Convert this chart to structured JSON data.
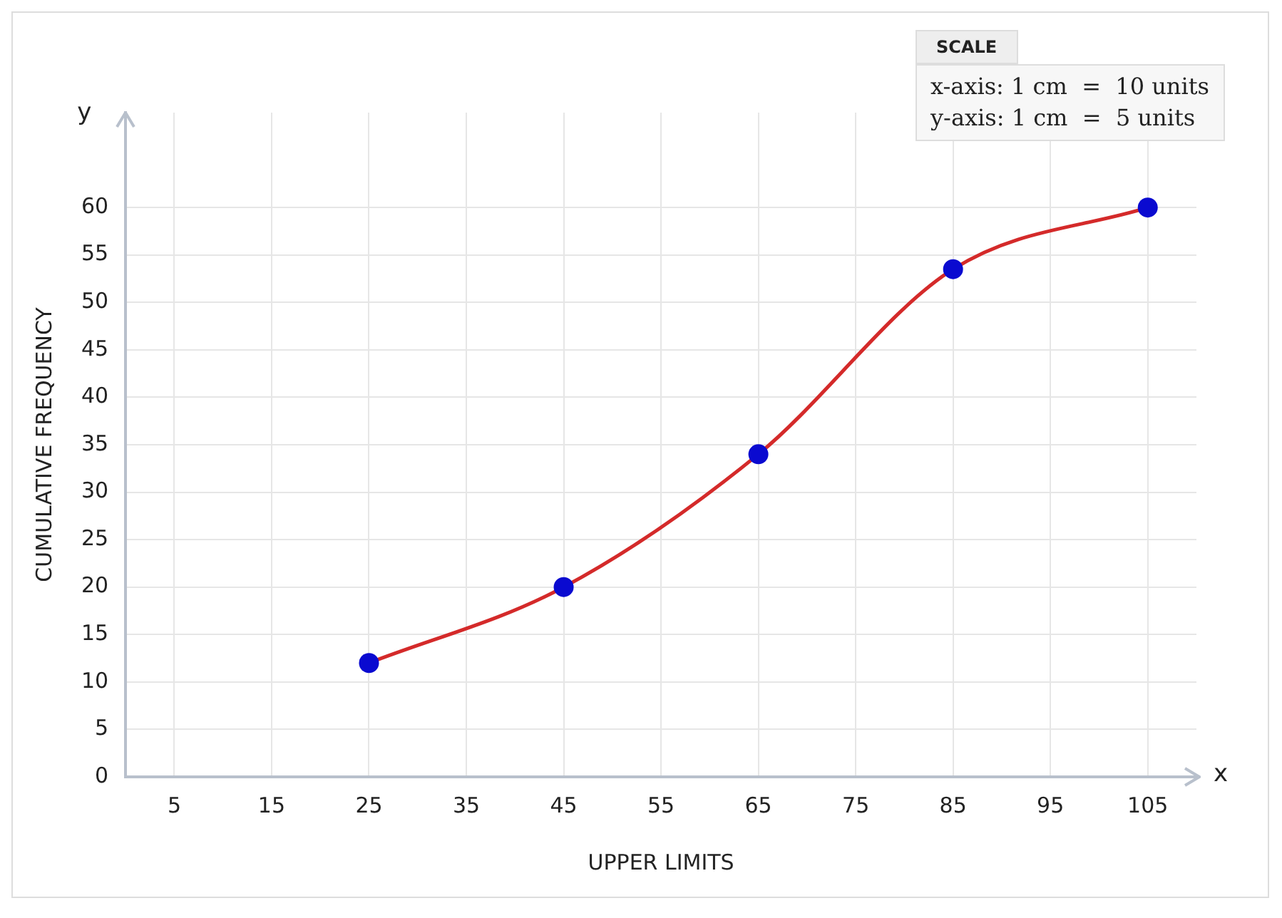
{
  "chart_data": {
    "type": "line",
    "xlabel": "UPPER LIMITS",
    "ylabel": "CUMULATIVE FREQUENCY",
    "annotations": [
      "SCALE",
      "x-axis: 1 cm  =  10 units",
      "y-axis: 1 cm  =  5 units",
      "x",
      "y"
    ],
    "x": [
      25,
      45,
      65,
      85,
      105
    ],
    "series": [
      {
        "type": "line",
        "color": "#d42a2a",
        "marker": "circle",
        "colors": [
          "#0a0ad0",
          "#0a0ad0",
          "#0a0ad0",
          "#0a0ad0",
          "#0a0ad0"
        ],
        "values": [
          12,
          20,
          34,
          53.5,
          60
        ]
      }
    ],
    "xlim": [
      0,
      110
    ],
    "xticks": [
      5,
      15,
      25,
      35,
      45,
      55,
      65,
      75,
      85,
      95,
      105
    ],
    "ylim": [
      0,
      70
    ],
    "yticks": [
      0,
      5,
      10,
      15,
      20,
      25,
      30,
      35,
      40,
      45,
      50,
      55,
      60
    ],
    "grid": true,
    "legend": false
  }
}
